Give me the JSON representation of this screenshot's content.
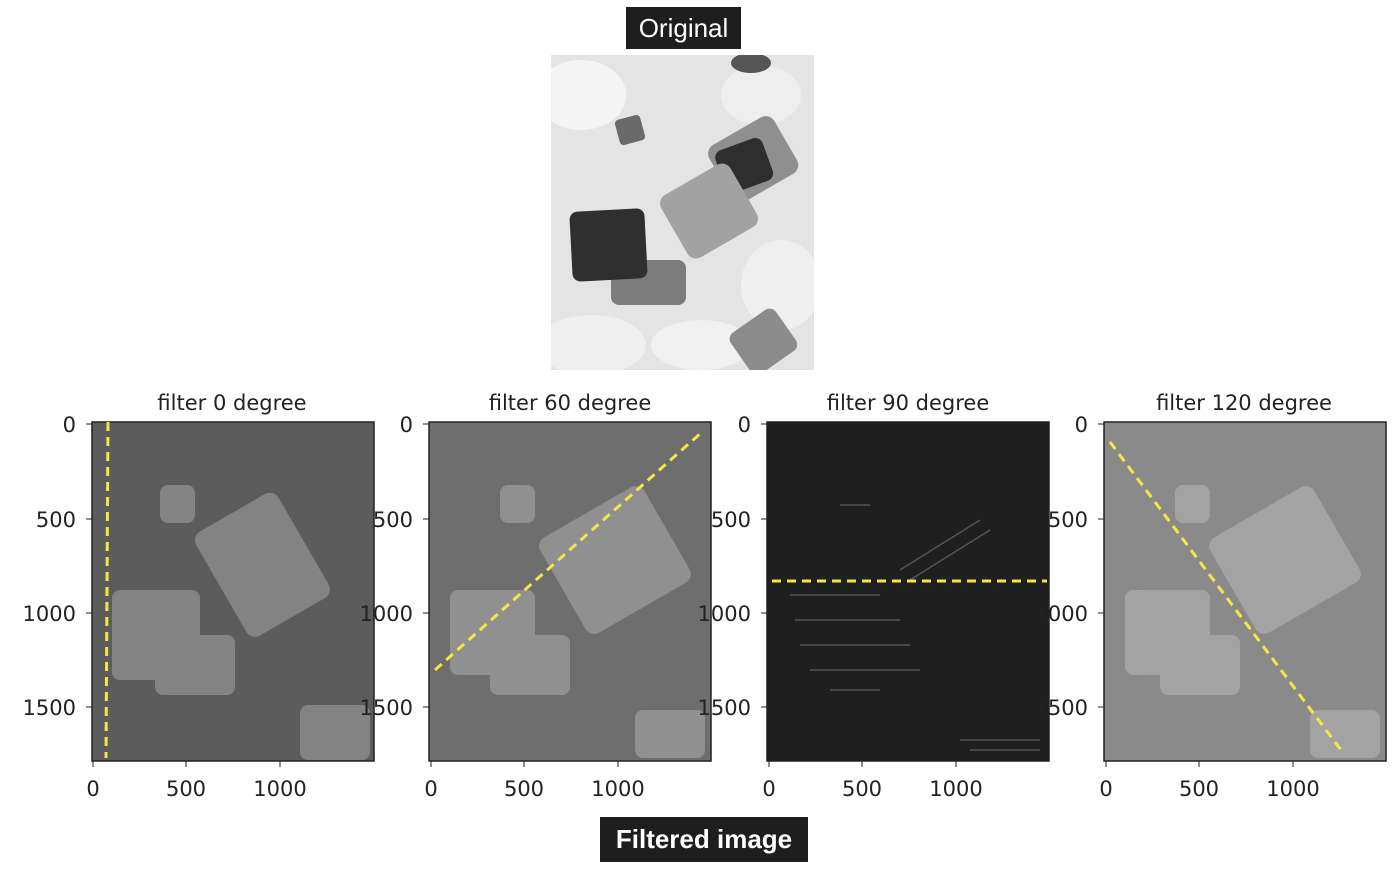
{
  "header": {
    "label": "Original"
  },
  "footer": {
    "label": "Filtered image"
  },
  "panels": [
    {
      "title": "filter 0 degree",
      "bg": "#5c5c5c",
      "line": "#f5e642"
    },
    {
      "title": "filter 60 degree",
      "bg": "#6e6e6e",
      "line": "#f5e642"
    },
    {
      "title": "filter 90 degree",
      "bg": "#1f1f1f",
      "line": "#f5e642"
    },
    {
      "title": "filter 120 degree",
      "bg": "#8a8a8a",
      "line": "#f5e642"
    }
  ],
  "axes": {
    "yticks": [
      "0",
      "500",
      "1000",
      "1500"
    ],
    "xticks": [
      "0",
      "500",
      "1000"
    ]
  }
}
